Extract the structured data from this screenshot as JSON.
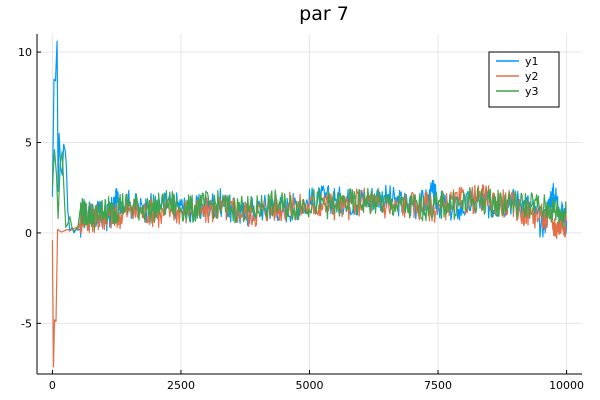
{
  "chart_data": {
    "type": "line",
    "title": "par 7",
    "xlabel": "",
    "ylabel": "",
    "xlim": [
      -300,
      10300
    ],
    "ylim": [
      -7.8,
      11.0
    ],
    "xticks": [
      0,
      2500,
      5000,
      7500,
      10000
    ],
    "yticks": [
      -5,
      0,
      5,
      10
    ],
    "grid": true,
    "legend_position": "top-right",
    "series": [
      {
        "name": "y1",
        "color": "#009AFA",
        "points": [
          [
            0,
            2.0
          ],
          [
            30,
            8.5
          ],
          [
            60,
            8.4
          ],
          [
            90,
            10.6
          ],
          [
            110,
            2.3
          ],
          [
            130,
            5.5
          ],
          [
            160,
            3.6
          ],
          [
            190,
            3.2
          ],
          [
            220,
            4.9
          ],
          [
            250,
            4.5
          ],
          [
            270,
            3.8
          ],
          [
            300,
            1.2
          ],
          [
            340,
            0.1
          ],
          [
            380,
            0.3
          ],
          [
            420,
            0.0
          ],
          [
            460,
            0.2
          ],
          [
            500,
            0.15
          ],
          [
            540,
            0.2
          ],
          [
            580,
            1.2
          ],
          [
            620,
            1.0
          ],
          [
            700,
            0.9
          ],
          [
            800,
            1.0
          ],
          [
            900,
            1.1
          ],
          [
            1000,
            0.8
          ],
          [
            1100,
            0.9
          ],
          [
            1200,
            1.5
          ],
          [
            1300,
            1.9
          ],
          [
            1500,
            1.6
          ],
          [
            1700,
            1.3
          ],
          [
            1900,
            1.4
          ],
          [
            2100,
            1.5
          ],
          [
            2300,
            1.6
          ],
          [
            2500,
            1.5
          ],
          [
            2700,
            1.2
          ],
          [
            2900,
            1.4
          ],
          [
            3100,
            1.6
          ],
          [
            3300,
            1.7
          ],
          [
            3500,
            1.2
          ],
          [
            3700,
            1.0
          ],
          [
            3900,
            1.3
          ],
          [
            4100,
            1.4
          ],
          [
            4300,
            1.5
          ],
          [
            4500,
            1.3
          ],
          [
            4700,
            1.5
          ],
          [
            4900,
            1.6
          ],
          [
            5100,
            1.8
          ],
          [
            5300,
            1.9
          ],
          [
            5500,
            1.8
          ],
          [
            5700,
            1.8
          ],
          [
            5900,
            1.7
          ],
          [
            6100,
            1.9
          ],
          [
            6300,
            2.0
          ],
          [
            6500,
            1.9
          ],
          [
            6700,
            1.7
          ],
          [
            6900,
            1.6
          ],
          [
            7100,
            1.5
          ],
          [
            7300,
            1.8
          ],
          [
            7400,
            2.2
          ],
          [
            7500,
            1.6
          ],
          [
            7700,
            1.4
          ],
          [
            7900,
            1.3
          ],
          [
            8100,
            1.6
          ],
          [
            8300,
            1.8
          ],
          [
            8500,
            1.5
          ],
          [
            8700,
            1.6
          ],
          [
            8900,
            1.8
          ],
          [
            9100,
            1.7
          ],
          [
            9300,
            1.5
          ],
          [
            9500,
            0.4
          ],
          [
            9600,
            0.8
          ],
          [
            9700,
            2.1
          ],
          [
            9800,
            1.9
          ],
          [
            9900,
            1.0
          ],
          [
            10000,
            0.7
          ]
        ]
      },
      {
        "name": "y2",
        "color": "#E26F46",
        "points": [
          [
            0,
            -0.4
          ],
          [
            20,
            -7.4
          ],
          [
            40,
            -4.8
          ],
          [
            70,
            -4.9
          ],
          [
            100,
            0.2
          ],
          [
            140,
            0.1
          ],
          [
            180,
            0.05
          ],
          [
            220,
            0.1
          ],
          [
            260,
            0.15
          ],
          [
            300,
            0.2
          ],
          [
            340,
            0.1
          ],
          [
            380,
            0.2
          ],
          [
            420,
            0.25
          ],
          [
            460,
            0.3
          ],
          [
            500,
            0.2
          ],
          [
            540,
            0.6
          ],
          [
            600,
            0.9
          ],
          [
            700,
            0.8
          ],
          [
            800,
            0.8
          ],
          [
            900,
            0.9
          ],
          [
            1000,
            0.9
          ],
          [
            1100,
            1.0
          ],
          [
            1200,
            0.8
          ],
          [
            1300,
            1.0
          ],
          [
            1500,
            1.2
          ],
          [
            1700,
            1.1
          ],
          [
            1900,
            1.2
          ],
          [
            2100,
            1.0
          ],
          [
            2300,
            1.3
          ],
          [
            2500,
            1.2
          ],
          [
            2700,
            1.3
          ],
          [
            2900,
            1.1
          ],
          [
            3100,
            1.3
          ],
          [
            3300,
            1.4
          ],
          [
            3500,
            1.3
          ],
          [
            3700,
            1.2
          ],
          [
            3900,
            1.0
          ],
          [
            4100,
            1.3
          ],
          [
            4300,
            1.4
          ],
          [
            4500,
            1.4
          ],
          [
            4700,
            1.5
          ],
          [
            4900,
            1.4
          ],
          [
            5100,
            1.5
          ],
          [
            5300,
            1.6
          ],
          [
            5500,
            1.5
          ],
          [
            5700,
            1.4
          ],
          [
            5900,
            1.7
          ],
          [
            6100,
            1.8
          ],
          [
            6300,
            1.6
          ],
          [
            6500,
            1.5
          ],
          [
            6700,
            1.4
          ],
          [
            6900,
            1.6
          ],
          [
            7100,
            1.5
          ],
          [
            7300,
            1.5
          ],
          [
            7500,
            1.3
          ],
          [
            7700,
            1.6
          ],
          [
            7900,
            1.7
          ],
          [
            8100,
            1.8
          ],
          [
            8300,
            1.9
          ],
          [
            8500,
            1.9
          ],
          [
            8700,
            1.7
          ],
          [
            8900,
            1.6
          ],
          [
            9100,
            1.2
          ],
          [
            9300,
            1.1
          ],
          [
            9500,
            0.9
          ],
          [
            9700,
            0.6
          ],
          [
            9800,
            0.3
          ],
          [
            9900,
            0.5
          ],
          [
            10000,
            0.6
          ]
        ]
      },
      {
        "name": "y3",
        "color": "#3EA44E",
        "points": [
          [
            0,
            2.5
          ],
          [
            40,
            4.6
          ],
          [
            80,
            3.2
          ],
          [
            110,
            0.8
          ],
          [
            150,
            3.7
          ],
          [
            190,
            4.5
          ],
          [
            230,
            2.0
          ],
          [
            260,
            0.3
          ],
          [
            300,
            0.5
          ],
          [
            340,
            0.9
          ],
          [
            380,
            0.3
          ],
          [
            420,
            0.1
          ],
          [
            460,
            0.2
          ],
          [
            500,
            0.4
          ],
          [
            540,
            1.3
          ],
          [
            600,
            1.1
          ],
          [
            700,
            1.1
          ],
          [
            800,
            0.9
          ],
          [
            900,
            1.0
          ],
          [
            1000,
            1.2
          ],
          [
            1100,
            1.3
          ],
          [
            1200,
            1.1
          ],
          [
            1300,
            1.6
          ],
          [
            1500,
            1.5
          ],
          [
            1700,
            1.4
          ],
          [
            1900,
            1.3
          ],
          [
            2100,
            1.5
          ],
          [
            2300,
            1.6
          ],
          [
            2500,
            1.4
          ],
          [
            2700,
            1.3
          ],
          [
            2900,
            1.5
          ],
          [
            3100,
            1.6
          ],
          [
            3300,
            1.5
          ],
          [
            3500,
            1.3
          ],
          [
            3700,
            1.4
          ],
          [
            3900,
            1.2
          ],
          [
            4100,
            1.5
          ],
          [
            4300,
            1.6
          ],
          [
            4500,
            1.5
          ],
          [
            4700,
            1.4
          ],
          [
            4900,
            1.6
          ],
          [
            5100,
            1.7
          ],
          [
            5300,
            1.6
          ],
          [
            5500,
            1.5
          ],
          [
            5700,
            1.7
          ],
          [
            5900,
            1.6
          ],
          [
            6100,
            1.8
          ],
          [
            6300,
            1.7
          ],
          [
            6500,
            1.6
          ],
          [
            6700,
            1.5
          ],
          [
            6900,
            1.4
          ],
          [
            7100,
            1.5
          ],
          [
            7300,
            1.4
          ],
          [
            7500,
            1.5
          ],
          [
            7700,
            1.6
          ],
          [
            7900,
            1.5
          ],
          [
            8100,
            1.7
          ],
          [
            8300,
            1.8
          ],
          [
            8500,
            1.7
          ],
          [
            8700,
            1.6
          ],
          [
            8900,
            1.7
          ],
          [
            9100,
            1.5
          ],
          [
            9300,
            1.6
          ],
          [
            9500,
            1.4
          ],
          [
            9700,
            1.3
          ],
          [
            9800,
            1.2
          ],
          [
            9900,
            1.0
          ],
          [
            10000,
            1.1
          ]
        ]
      }
    ]
  }
}
